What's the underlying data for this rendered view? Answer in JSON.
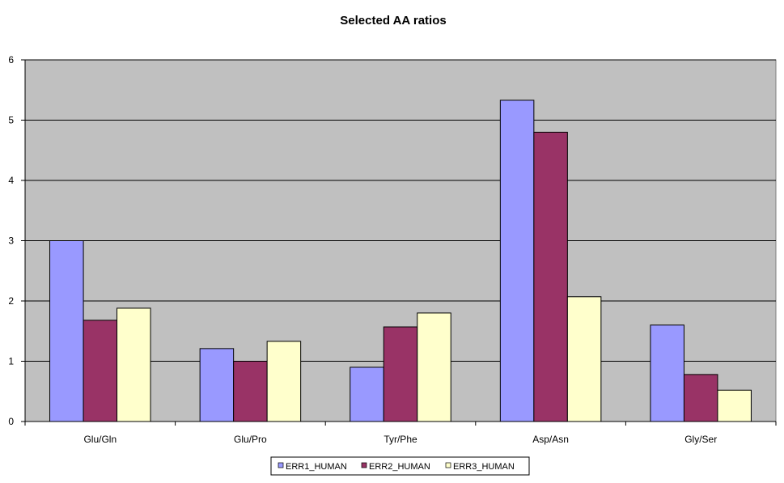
{
  "chart_data": {
    "type": "bar",
    "title": "Selected AA ratios",
    "xlabel": "",
    "ylabel": "",
    "ylim": [
      0,
      6
    ],
    "yticks": [
      "0",
      "1",
      "2",
      "3",
      "4",
      "5",
      "6"
    ],
    "categories": [
      "Glu/Gln",
      "Glu/Pro",
      "Tyr/Phe",
      "Asp/Asn",
      "Gly/Ser"
    ],
    "series": [
      {
        "name": "ERR1_HUMAN",
        "color": "#9999ff",
        "values": [
          3.0,
          1.21,
          0.9,
          5.33,
          1.6
        ]
      },
      {
        "name": "ERR2_HUMAN",
        "color": "#993366",
        "values": [
          1.68,
          1.0,
          1.57,
          4.8,
          0.78
        ]
      },
      {
        "name": "ERR3_HUMAN",
        "color": "#ffffcc",
        "values": [
          1.88,
          1.33,
          1.8,
          2.07,
          0.52
        ]
      }
    ],
    "grid": true,
    "plot_background": "#c0c0c0",
    "legend_position": "bottom"
  }
}
